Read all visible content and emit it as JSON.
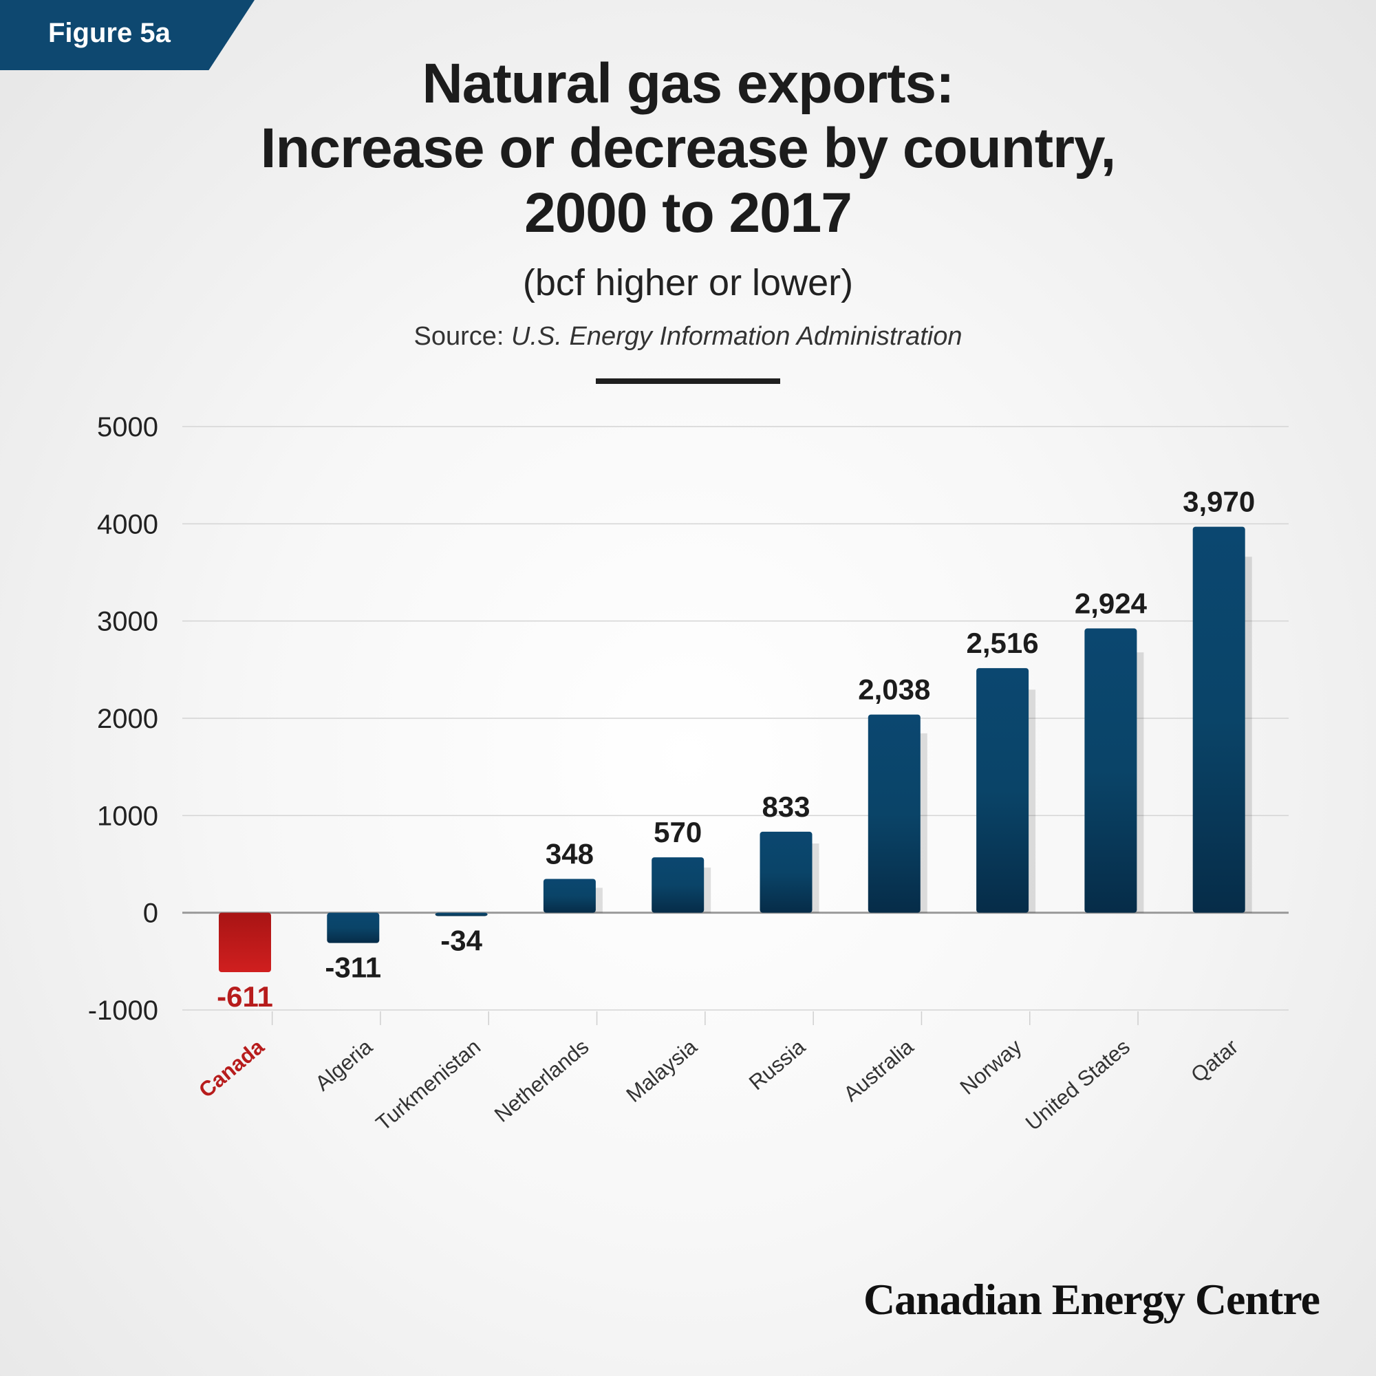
{
  "figure_label": "Figure 5a",
  "title_lines": [
    "Natural gas exports:",
    "Increase or decrease by country,",
    "2000 to 2017"
  ],
  "subtitle": "(bcf higher or lower)",
  "source": {
    "prefix": "Source:",
    "name": "U.S. Energy Information Administration"
  },
  "brand": "Canadian Energy Centre",
  "colors": {
    "bar": "#0b4770",
    "bar_dark": "#062c48",
    "highlight": "#c41a1a",
    "highlight_label": "#b71c1c",
    "text": "#1c1c1c",
    "grid": "#d4d4d4",
    "zero_line": "#9a9a9a"
  },
  "chart_data": {
    "type": "bar",
    "categories": [
      "Canada",
      "Algeria",
      "Turkmenistan",
      "Netherlands",
      "Malaysia",
      "Russia",
      "Australia",
      "Norway",
      "United States",
      "Qatar"
    ],
    "values": [
      -611,
      -311,
      -34,
      348,
      570,
      833,
      2038,
      2516,
      2924,
      3970
    ],
    "data_labels": [
      "-611",
      "-311",
      "-34",
      "348",
      "570",
      "833",
      "2,038",
      "2,516",
      "2,924",
      "3,970"
    ],
    "highlight": "Canada",
    "y_ticks": [
      "5000",
      "4000",
      "3000",
      "2000",
      "1000",
      "0",
      "-1000"
    ],
    "ylim": [
      -1000,
      5000
    ],
    "grid": true,
    "xlabel": "",
    "ylabel": ""
  }
}
